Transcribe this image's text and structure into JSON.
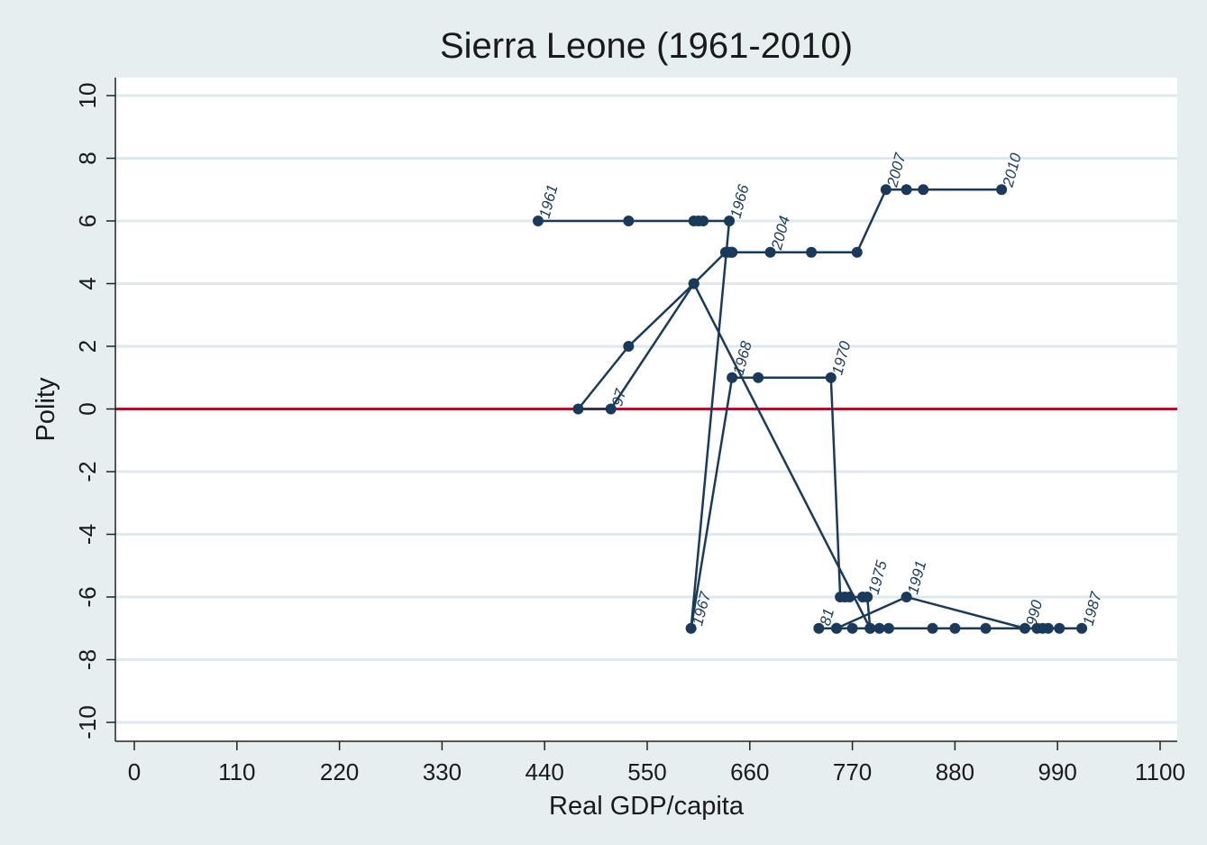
{
  "chart_data": {
    "type": "line",
    "title": "Sierra Leone (1961-2010)",
    "xlabel": "Real GDP/capita",
    "ylabel": "Polity",
    "xlim": [
      0,
      1100
    ],
    "ylim": [
      -10,
      10
    ],
    "xticks": [
      0,
      110,
      220,
      330,
      440,
      550,
      660,
      770,
      880,
      990,
      1100
    ],
    "yticks": [
      -10,
      -8,
      -6,
      -4,
      -2,
      0,
      2,
      4,
      6,
      8,
      10
    ],
    "grid": true,
    "reference_line": {
      "y": 0,
      "color": "#b0102a"
    },
    "series_color": "#1a3a5c",
    "points": [
      {
        "year": 1961,
        "x": 433,
        "y": 6,
        "label": "1961"
      },
      {
        "year": 1962,
        "x": 530,
        "y": 6
      },
      {
        "year": 1963,
        "x": 600,
        "y": 6
      },
      {
        "year": 1964,
        "x": 605,
        "y": 6
      },
      {
        "year": 1965,
        "x": 610,
        "y": 6
      },
      {
        "year": 1966,
        "x": 638,
        "y": 6,
        "label": "1966"
      },
      {
        "year": 1967,
        "x": 597,
        "y": -7,
        "label": "1967"
      },
      {
        "year": 1968,
        "x": 641,
        "y": 1,
        "label": "1968"
      },
      {
        "year": 1969,
        "x": 669,
        "y": 1
      },
      {
        "year": 1970,
        "x": 747,
        "y": 1,
        "label": "1970"
      },
      {
        "year": 1971,
        "x": 757,
        "y": -6
      },
      {
        "year": 1972,
        "x": 762,
        "y": -6
      },
      {
        "year": 1973,
        "x": 767,
        "y": -6
      },
      {
        "year": 1974,
        "x": 781,
        "y": -6
      },
      {
        "year": 1975,
        "x": 786,
        "y": -6,
        "label": "1975"
      },
      {
        "year": 1976,
        "x": 789,
        "y": -7
      },
      {
        "year": 1977,
        "x": 799,
        "y": -7
      },
      {
        "year": 1978,
        "x": 809,
        "y": -7
      },
      {
        "year": 1979,
        "x": 770,
        "y": -7
      },
      {
        "year": 1980,
        "x": 753,
        "y": -7
      },
      {
        "year": 1981,
        "x": 734,
        "y": -7,
        "label": "81"
      },
      {
        "year": 1982,
        "x": 856,
        "y": -7
      },
      {
        "year": 1983,
        "x": 880,
        "y": -7
      },
      {
        "year": 1984,
        "x": 913,
        "y": -7
      },
      {
        "year": 1985,
        "x": 968,
        "y": -7
      },
      {
        "year": 1986,
        "x": 992,
        "y": -7
      },
      {
        "year": 1987,
        "x": 1016,
        "y": -7,
        "label": "1987"
      },
      {
        "year": 1988,
        "x": 980,
        "y": -7
      },
      {
        "year": 1989,
        "x": 974,
        "y": -7
      },
      {
        "year": 1990,
        "x": 955,
        "y": -7,
        "label": "990"
      },
      {
        "year": 1991,
        "x": 828,
        "y": -6,
        "label": "1991"
      },
      {
        "year": 1992,
        "x": 753,
        "y": -7
      },
      {
        "year": 1993,
        "x": 789,
        "y": -7
      },
      {
        "year": 1994,
        "x": 600,
        "y": 4
      },
      {
        "year": 1995,
        "x": 530,
        "y": 2
      },
      {
        "year": 1996,
        "x": 476,
        "y": 0
      },
      {
        "year": 1997,
        "x": 511,
        "y": 0,
        "label": "97"
      },
      {
        "year": 1998,
        "x": 600,
        "y": 4
      },
      {
        "year": 1999,
        "x": 634,
        "y": 5
      },
      {
        "year": 2000,
        "x": 637,
        "y": 5
      },
      {
        "year": 2001,
        "x": 639,
        "y": 5
      },
      {
        "year": 2002,
        "x": 641,
        "y": 5
      },
      {
        "year": 2003,
        "x": 641,
        "y": 5
      },
      {
        "year": 2004,
        "x": 682,
        "y": 5,
        "label": "2004"
      },
      {
        "year": 2005,
        "x": 726,
        "y": 5
      },
      {
        "year": 2006,
        "x": 775,
        "y": 5
      },
      {
        "year": 2007,
        "x": 806,
        "y": 7,
        "label": "2007"
      },
      {
        "year": 2008,
        "x": 828,
        "y": 7
      },
      {
        "year": 2009,
        "x": 846,
        "y": 7
      },
      {
        "year": 2010,
        "x": 930,
        "y": 7,
        "label": "2010"
      }
    ]
  }
}
